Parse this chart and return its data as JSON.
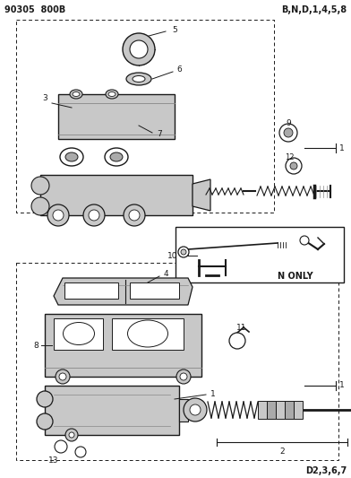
{
  "title_left": "90305  800B",
  "title_right": "B,N,D,1,4,5,8",
  "bottom_right": "D2,3,6,7",
  "n_only_label": "N ONLY",
  "bg_color": "#ffffff",
  "fg_color": "#1a1a1a",
  "gray1": "#c8c8c8",
  "gray2": "#aaaaaa",
  "gray3": "#888888"
}
